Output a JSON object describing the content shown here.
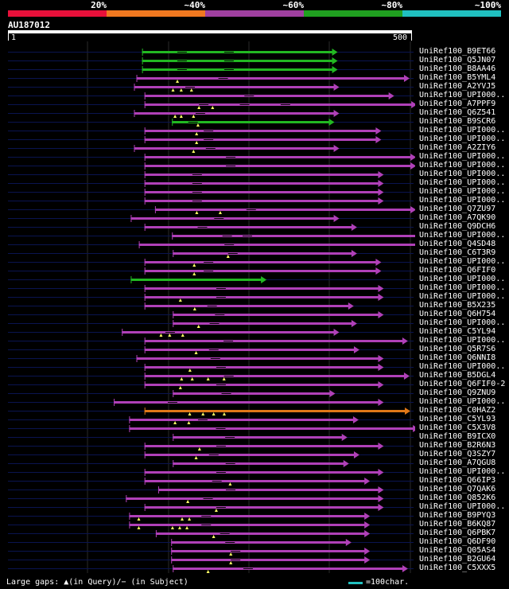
{
  "scale": {
    "labels": [
      "20%",
      "~40%",
      "~60%",
      "~80%",
      "~100%"
    ],
    "colors": [
      "#e8103a",
      "#f07820",
      "#a040a0",
      "#20a020",
      "#20c0c0"
    ]
  },
  "query": {
    "id": "AU187012",
    "start": "1",
    "end": "500",
    "length": 500
  },
  "colors": {
    "green": "#22b822",
    "magenta": "#b040b8",
    "orange": "#e07818",
    "faint": "#0a1450",
    "triangle": "#ffff66"
  },
  "hits": [
    {
      "label": "UniRef100_B9ET66",
      "color": "green",
      "start": 166,
      "end": 408,
      "gaps": [
        0.18,
        0.42
      ]
    },
    {
      "label": "UniRef100_Q5JN07",
      "color": "green",
      "start": 166,
      "end": 408,
      "gaps": [
        0.18,
        0.42
      ]
    },
    {
      "label": "UniRef100_B8AA46",
      "color": "green",
      "start": 166,
      "end": 408,
      "gaps": [
        0.18,
        0.42
      ]
    },
    {
      "label": "UniRef100_B5YML4",
      "color": "magenta",
      "start": 159,
      "end": 497,
      "gaps": [
        0.3
      ],
      "tris": [
        0.15
      ]
    },
    {
      "label": "UniRef100_A2YVJ5",
      "color": "magenta",
      "start": 156,
      "end": 410,
      "gaps": [
        0.25
      ],
      "tris": [
        0.19,
        0.23,
        0.28
      ]
    },
    {
      "label": "UniRef100_UPI000..",
      "color": "magenta",
      "start": 169,
      "end": 478,
      "gaps": [
        0.4
      ]
    },
    {
      "label": "UniRef100_A7PPF9",
      "color": "magenta",
      "start": 169,
      "end": 506,
      "gaps": [
        0.2,
        0.35,
        0.5
      ],
      "tris": [
        0.2,
        0.25
      ]
    },
    {
      "label": "UniRef100_Q6Z541",
      "color": "magenta",
      "start": 156,
      "end": 410,
      "gaps": [
        0.3
      ],
      "tris": [
        0.2,
        0.23,
        0.29
      ]
    },
    {
      "label": "UniRef100_B9SCR6",
      "color": "green",
      "start": 203,
      "end": 404,
      "gaps": [
        0.1
      ],
      "tris": [
        0.16
      ]
    },
    {
      "label": "UniRef100_UPI000..",
      "color": "magenta",
      "start": 169,
      "end": 462,
      "gaps": [
        0.25
      ],
      "tris": [
        0.22
      ]
    },
    {
      "label": "UniRef100_UPI000..",
      "color": "magenta",
      "start": 169,
      "end": 462,
      "gaps": [
        0.25
      ],
      "tris": [
        0.22
      ]
    },
    {
      "label": "UniRef100_A2ZIY6",
      "color": "magenta",
      "start": 156,
      "end": 410,
      "gaps": [
        0.35
      ],
      "tris": [
        0.29
      ]
    },
    {
      "label": "UniRef100_UPI000..",
      "color": "magenta",
      "start": 169,
      "end": 505,
      "gaps": [
        0.3
      ]
    },
    {
      "label": "UniRef100_UPI000..",
      "color": "magenta",
      "start": 169,
      "end": 505,
      "gaps": [
        0.3
      ]
    },
    {
      "label": "UniRef100_UPI000..",
      "color": "magenta",
      "start": 169,
      "end": 465,
      "gaps": [
        0.2
      ]
    },
    {
      "label": "UniRef100_UPI000..",
      "color": "magenta",
      "start": 169,
      "end": 465,
      "gaps": [
        0.2
      ]
    },
    {
      "label": "UniRef100_UPI000..",
      "color": "magenta",
      "start": 169,
      "end": 465,
      "gaps": [
        0.2
      ]
    },
    {
      "label": "UniRef100_UPI000..",
      "color": "magenta",
      "start": 169,
      "end": 465,
      "gaps": [
        0.2
      ]
    },
    {
      "label": "UniRef100_Q7ZU97",
      "color": "magenta",
      "start": 182,
      "end": 505,
      "gaps": [
        0.35
      ],
      "tris": [
        0.16,
        0.25
      ]
    },
    {
      "label": "UniRef100_A7QK90",
      "color": "magenta",
      "start": 152,
      "end": 410,
      "gaps": [
        0.4
      ]
    },
    {
      "label": "UniRef100_Q9DCH6",
      "color": "magenta",
      "start": 169,
      "end": 432,
      "gaps": [
        0.25
      ]
    },
    {
      "label": "UniRef100_UPI000..",
      "color": "magenta",
      "start": 203,
      "end": 515,
      "gaps": [
        0.2,
        0.28
      ]
    },
    {
      "label": "UniRef100_Q4SD48",
      "color": "magenta",
      "start": 162,
      "end": 515,
      "gaps": [
        0.3
      ]
    },
    {
      "label": "UniRef100_C6T3R9",
      "color": "magenta",
      "start": 204,
      "end": 432,
      "gaps": [
        0.3
      ],
      "tris": [
        0.3
      ]
    },
    {
      "label": "UniRef100_UPI000..",
      "color": "magenta",
      "start": 169,
      "end": 462,
      "gaps": [
        0.25
      ],
      "tris": [
        0.21
      ]
    },
    {
      "label": "UniRef100_Q6FIF0",
      "color": "magenta",
      "start": 169,
      "end": 462,
      "gaps": [
        0.25
      ],
      "tris": [
        0.21
      ]
    },
    {
      "label": "UniRef100_UPI000..",
      "color": "green",
      "start": 152,
      "end": 320,
      "gaps": []
    },
    {
      "label": "UniRef100_UPI000..",
      "color": "magenta",
      "start": 169,
      "end": 465,
      "gaps": [
        0.3
      ]
    },
    {
      "label": "UniRef100_UPI000..",
      "color": "magenta",
      "start": 169,
      "end": 465,
      "gaps": [
        0.3
      ],
      "tris": [
        0.15
      ]
    },
    {
      "label": "UniRef100_B5X235",
      "color": "magenta",
      "start": 169,
      "end": 428,
      "gaps": [
        0.3
      ],
      "tris": [
        0.24
      ]
    },
    {
      "label": "UniRef100_Q6H754",
      "color": "magenta",
      "start": 204,
      "end": 465,
      "gaps": [
        0.2
      ]
    },
    {
      "label": "UniRef100_UPI000..",
      "color": "magenta",
      "start": 204,
      "end": 432,
      "gaps": [
        0.2
      ],
      "tris": [
        0.14
      ]
    },
    {
      "label": "UniRef100_C5YL94",
      "color": "magenta",
      "start": 141,
      "end": 410,
      "gaps": [
        0.2
      ],
      "tris": [
        0.18,
        0.22,
        0.28
      ]
    },
    {
      "label": "UniRef100_UPI000..",
      "color": "magenta",
      "start": 169,
      "end": 495,
      "gaps": [
        0.3
      ]
    },
    {
      "label": "UniRef100_Q5R7S6",
      "color": "magenta",
      "start": 169,
      "end": 435,
      "gaps": [
        0.3
      ],
      "tris": [
        0.24
      ]
    },
    {
      "label": "UniRef100_Q6NNI8",
      "color": "magenta",
      "start": 159,
      "end": 465,
      "gaps": [
        0.3
      ]
    },
    {
      "label": "UniRef100_UPI000..",
      "color": "magenta",
      "start": 169,
      "end": 465,
      "gaps": [
        0.3
      ],
      "tris": [
        0.19
      ]
    },
    {
      "label": "UniRef100_B5DGL4",
      "color": "magenta",
      "start": 169,
      "end": 497,
      "gaps": [
        0.3
      ],
      "tris": [
        0.14,
        0.18,
        0.24,
        0.3
      ]
    },
    {
      "label": "UniRef100_Q6FIF0-2",
      "color": "magenta",
      "start": 169,
      "end": 465,
      "gaps": [
        0.3
      ],
      "tris": [
        0.15
      ]
    },
    {
      "label": "UniRef100_Q9ZNU9",
      "color": "magenta",
      "start": 204,
      "end": 405,
      "gaps": [
        0.3
      ]
    },
    {
      "label": "UniRef100_UPI000..",
      "color": "magenta",
      "start": 131,
      "end": 465,
      "gaps": [
        0.2
      ]
    },
    {
      "label": "UniRef100_C0HAZ2",
      "color": "orange",
      "start": 169,
      "end": 498,
      "gaps": [],
      "tris": [
        0.17,
        0.22,
        0.26,
        0.3
      ]
    },
    {
      "label": "UniRef100_C5YL93",
      "color": "magenta",
      "start": 150,
      "end": 434,
      "gaps": [
        0.3
      ],
      "tris": [
        0.2,
        0.26
      ]
    },
    {
      "label": "UniRef100_C5X3V8",
      "color": "magenta",
      "start": 150,
      "end": 508,
      "gaps": [
        0.3
      ]
    },
    {
      "label": "UniRef100_B9ICX0",
      "color": "magenta",
      "start": 204,
      "end": 420,
      "gaps": [
        0.3
      ]
    },
    {
      "label": "UniRef100_B2R6N3",
      "color": "magenta",
      "start": 169,
      "end": 465,
      "gaps": [
        0.3
      ],
      "tris": [
        0.23
      ]
    },
    {
      "label": "UniRef100_Q3SZY7",
      "color": "magenta",
      "start": 169,
      "end": 435,
      "gaps": [
        0.3
      ],
      "tris": [
        0.24
      ]
    },
    {
      "label": "UniRef100_A7QGU8",
      "color": "magenta",
      "start": 204,
      "end": 422,
      "gaps": [
        0.3
      ]
    },
    {
      "label": "UniRef100_UPI000..",
      "color": "magenta",
      "start": 169,
      "end": 465,
      "gaps": [
        0.3
      ]
    },
    {
      "label": "UniRef100_Q66IP3",
      "color": "magenta",
      "start": 169,
      "end": 448,
      "gaps": [
        0.3
      ],
      "tris": [
        0.38
      ]
    },
    {
      "label": "UniRef100_Q7QAK6",
      "color": "magenta",
      "start": 186,
      "end": 465,
      "gaps": [
        0.3
      ]
    },
    {
      "label": "UniRef100_Q852K6",
      "color": "magenta",
      "start": 146,
      "end": 465,
      "gaps": [
        0.3
      ],
      "tris": [
        0.24
      ]
    },
    {
      "label": "UniRef100_UPI000..",
      "color": "magenta",
      "start": 169,
      "end": 465,
      "gaps": [
        0.3
      ],
      "tris": [
        0.3
      ]
    },
    {
      "label": "UniRef100_B9PYQ3",
      "color": "magenta",
      "start": 150,
      "end": 448,
      "gaps": [
        0.3
      ],
      "tris": [
        0.04,
        0.22,
        0.25
      ]
    },
    {
      "label": "UniRef100_B6KQ87",
      "color": "magenta",
      "start": 150,
      "end": 448,
      "gaps": [
        0.3
      ],
      "tris": [
        0.04,
        0.18,
        0.21,
        0.24
      ]
    },
    {
      "label": "UniRef100_Q6PBK7",
      "color": "magenta",
      "start": 183,
      "end": 448,
      "gaps": [
        0.3
      ],
      "tris": [
        0.27
      ]
    },
    {
      "label": "UniRef100_Q6DF90",
      "color": "magenta",
      "start": 202,
      "end": 425,
      "gaps": [
        0.3
      ]
    },
    {
      "label": "UniRef100_Q05AS4",
      "color": "magenta",
      "start": 202,
      "end": 448,
      "gaps": [
        0.3
      ],
      "tris": [
        0.3
      ]
    },
    {
      "label": "UniRef100_B2GU64",
      "color": "magenta",
      "start": 202,
      "end": 448,
      "gaps": [
        0.3
      ],
      "tris": [
        0.3
      ]
    },
    {
      "label": "UniRef100_C5XXX5",
      "color": "magenta",
      "start": 204,
      "end": 495,
      "gaps": [
        0.3
      ],
      "tris": [
        0.15
      ]
    }
  ],
  "footer": {
    "gaps_text": "Large gaps: ▲(in Query)/− (in Subject)",
    "legend_text": "=100char."
  }
}
